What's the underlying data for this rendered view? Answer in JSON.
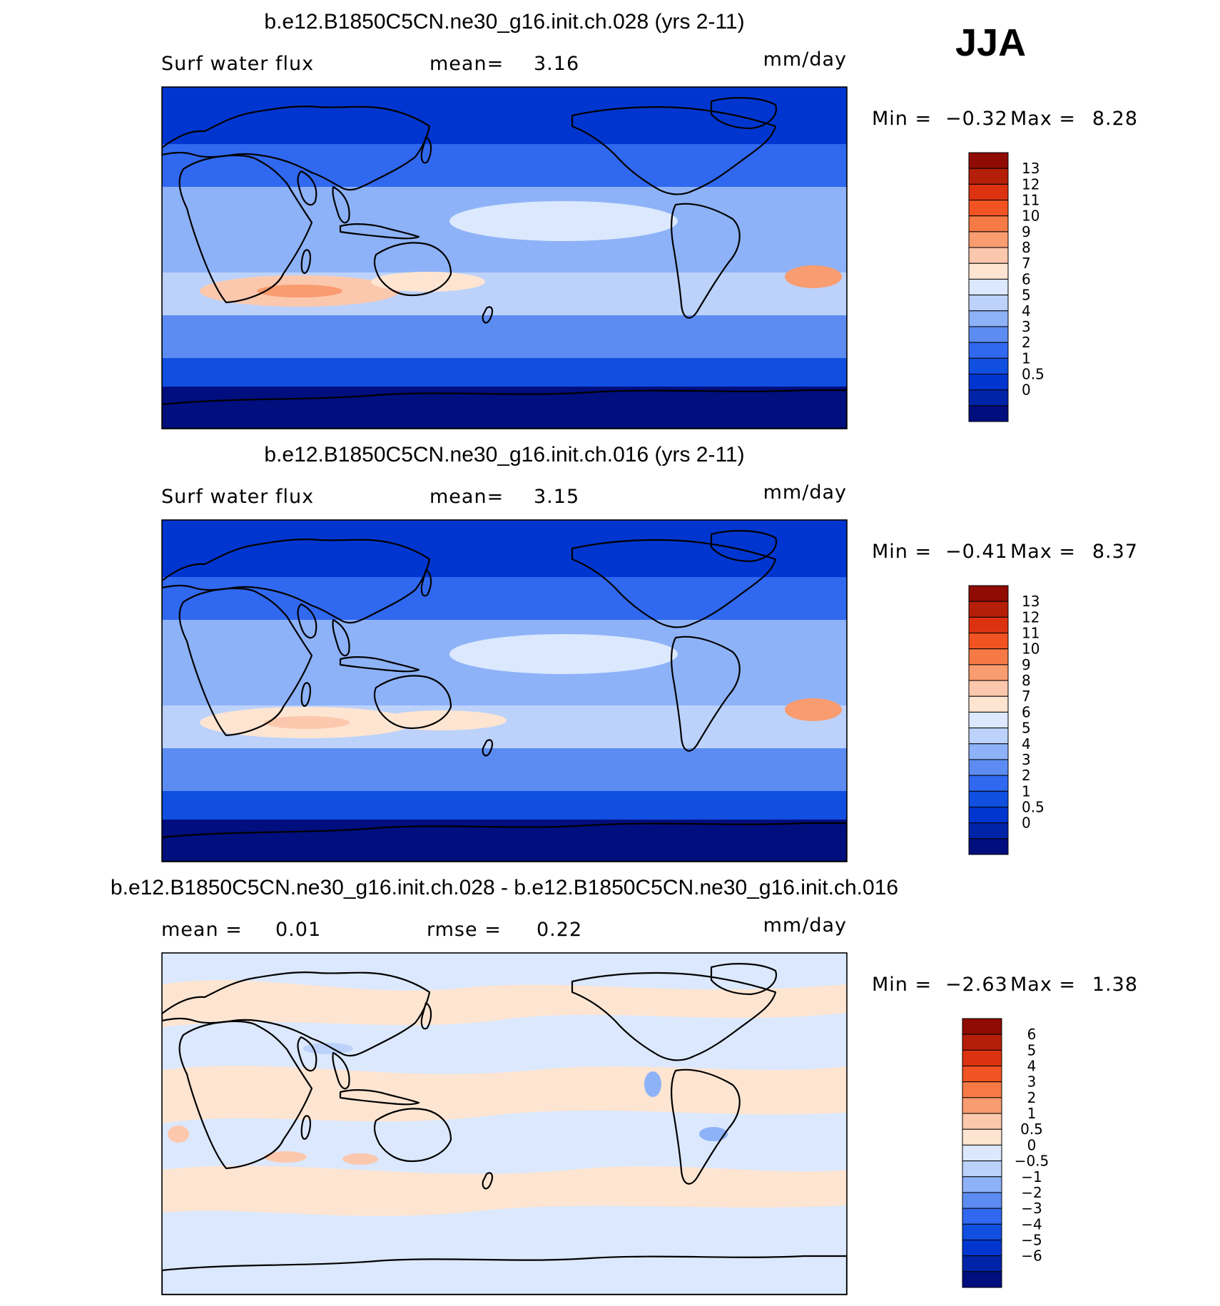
{
  "season": "JJA",
  "colors": {
    "levels_abs": [
      "#000e7e",
      "#0024a8",
      "#0036cf",
      "#104fe0",
      "#3068f0",
      "#5c8cf2",
      "#8eb2f8",
      "#bcd2fa",
      "#dbe8fd",
      "#fde5d2",
      "#fcc8ad",
      "#f99c70",
      "#f67a45",
      "#f25322",
      "#dc3210",
      "#b51f09",
      "#8f0b03"
    ],
    "levels_diff": [
      "#000e7e",
      "#0024a8",
      "#0036cf",
      "#104fe0",
      "#3068f0",
      "#5c8cf2",
      "#8eb2f8",
      "#bcd2fa",
      "#dbe8fd",
      "#fde5d2",
      "#fcc8ad",
      "#f99c70",
      "#f67a45",
      "#f25322",
      "#dc3210",
      "#b51f09",
      "#8f0b03"
    ],
    "land": "#0a2fb8"
  },
  "panels": [
    {
      "title": "b.e12.B1850C5CN.ne30_g16.init.ch.028 (yrs 2-11)",
      "left_label": "Surf water flux",
      "center_label": "mean=",
      "center_value": "3.16",
      "units": "mm/day",
      "min_label": "Min =",
      "min_value": "−0.32",
      "max_label": "Max =",
      "max_value": "8.28",
      "colorbar_labels": [
        "13",
        "12",
        "11",
        "10",
        "9",
        "8",
        "7",
        "6",
        "5",
        "4",
        "3",
        "2",
        "1",
        "0.5",
        "0"
      ]
    },
    {
      "title": "b.e12.B1850C5CN.ne30_g16.init.ch.016 (yrs 2-11)",
      "left_label": "Surf water flux",
      "center_label": "mean=",
      "center_value": "3.15",
      "units": "mm/day",
      "min_label": "Min =",
      "min_value": "−0.41",
      "max_label": "Max =",
      "max_value": "8.37",
      "colorbar_labels": [
        "13",
        "12",
        "11",
        "10",
        "9",
        "8",
        "7",
        "6",
        "5",
        "4",
        "3",
        "2",
        "1",
        "0.5",
        "0"
      ]
    },
    {
      "title": "b.e12.B1850C5CN.ne30_g16.init.ch.028 - b.e12.B1850C5CN.ne30_g16.init.ch.016",
      "left_label": "mean =",
      "left_value": "0.01",
      "center_label": "rmse =",
      "center_value": "0.22",
      "units": "mm/day",
      "min_label": "Min =",
      "min_value": "−2.63",
      "max_label": "Max =",
      "max_value": "1.38",
      "colorbar_labels": [
        "6",
        "5",
        "4",
        "3",
        "2",
        "1",
        "0.5",
        "0",
        "−0.5",
        "−1",
        "−2",
        "−3",
        "−4",
        "−5",
        "−6"
      ]
    }
  ]
}
